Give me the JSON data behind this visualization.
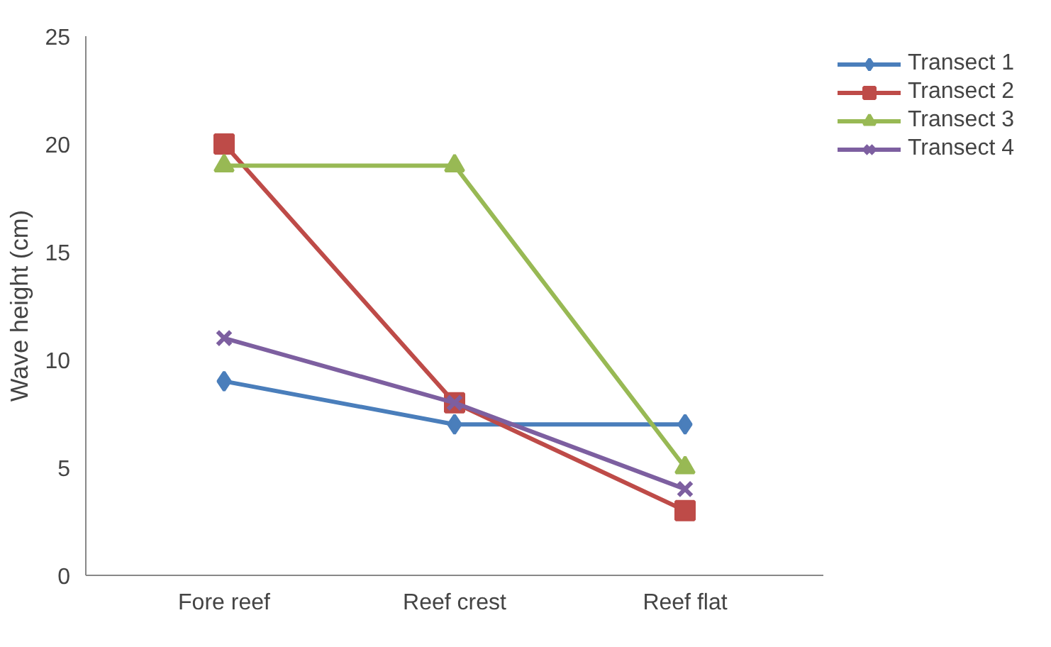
{
  "chart_data": {
    "type": "line",
    "ylabel": "Wave height (cm)",
    "categories": [
      "Fore reef",
      "Reef crest",
      "Reef flat"
    ],
    "ylim": [
      0,
      25
    ],
    "yticks": [
      0,
      5,
      10,
      15,
      20,
      25
    ],
    "grid": false,
    "legend": "right",
    "line_style": "solid",
    "series": [
      {
        "name": "Transect 1",
        "color": "#4a7ebb",
        "marker": "diamond",
        "values": [
          9,
          7,
          7
        ]
      },
      {
        "name": "Transect 2",
        "color": "#be4b48",
        "marker": "square",
        "values": [
          20,
          8,
          3
        ]
      },
      {
        "name": "Transect 3",
        "color": "#98b954",
        "marker": "triangle",
        "values": [
          19,
          19,
          5
        ]
      },
      {
        "name": "Transect 4",
        "color": "#7d5fa0",
        "marker": "cross",
        "values": [
          11,
          8,
          4
        ]
      }
    ]
  }
}
